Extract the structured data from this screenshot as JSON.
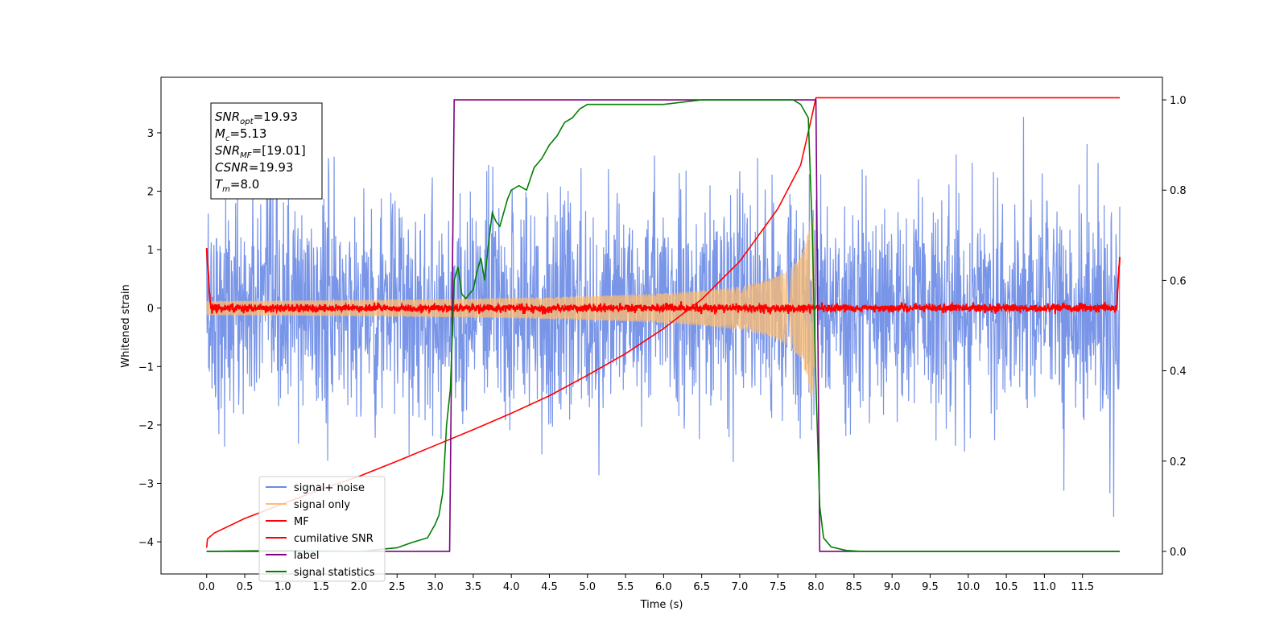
{
  "chart_data": {
    "type": "line",
    "xlabel": "Time (s)",
    "ylabel": "Whitened strain",
    "xlim": [
      -0.6,
      12.55
    ],
    "ylim": [
      -4.55,
      3.95
    ],
    "y2lim": [
      -0.05,
      1.05
    ],
    "xticks": [
      0.0,
      0.5,
      1.0,
      1.5,
      2.0,
      2.5,
      3.0,
      3.5,
      4.0,
      4.5,
      5.0,
      5.5,
      6.0,
      6.5,
      7.0,
      7.5,
      8.0,
      8.5,
      9.0,
      9.5,
      10.0,
      10.5,
      11.0,
      11.5
    ],
    "xtick_labels": [
      "0.0",
      "0.5",
      "1.0",
      "1.5",
      "2.0",
      "2.5",
      "3.0",
      "3.5",
      "4.0",
      "4.5",
      "5.0",
      "5.5",
      "6.0",
      "6.5",
      "7.0",
      "7.5",
      "8.0",
      "8.5",
      "9.0",
      "9.5",
      "10.0",
      "10.5",
      "11.0",
      "11.5"
    ],
    "yticks": [
      -4,
      -3,
      -2,
      -1,
      0,
      1,
      2,
      3
    ],
    "ytick_labels": [
      "−4",
      "−3",
      "−2",
      "−1",
      "0",
      "1",
      "2",
      "3"
    ],
    "y2ticks": [
      0.0,
      0.2,
      0.4,
      0.6,
      0.8,
      1.0
    ],
    "y2tick_labels": [
      "0.0",
      "0.2",
      "0.4",
      "0.6",
      "0.8",
      "1.0"
    ],
    "grid": false,
    "legend_placement": "lower-left",
    "series": [
      {
        "name": "signal+ noise",
        "color": "#6a8ae6",
        "axis": "left",
        "kind": "noise",
        "x_range": [
          0.0,
          11.99
        ],
        "noise_std": 0.95
      },
      {
        "name": "signal only",
        "color": "#ffbe70",
        "axis": "left",
        "kind": "chirp",
        "x_range": [
          0.0,
          8.0
        ],
        "amplitude_start": 0.12,
        "amplitude_end": 1.5
      },
      {
        "name": "MF",
        "color": "#ff0000",
        "axis": "left",
        "kind": "noise",
        "x_range": [
          0.0,
          11.99
        ],
        "noise_std": 0.035
      },
      {
        "name": "cumilative SNR",
        "color": "#ff0000",
        "axis": "left",
        "x": [
          0.0,
          0.01,
          0.1,
          0.5,
          1.0,
          1.5,
          2.0,
          2.5,
          3.0,
          3.5,
          4.0,
          4.5,
          5.0,
          5.5,
          6.0,
          6.5,
          7.0,
          7.5,
          7.8,
          7.95,
          8.0,
          11.99
        ],
        "y": [
          -4.1,
          -3.95,
          -3.85,
          -3.6,
          -3.35,
          -3.1,
          -2.88,
          -2.62,
          -2.35,
          -2.08,
          -1.8,
          -1.5,
          -1.15,
          -0.78,
          -0.35,
          0.15,
          0.8,
          1.7,
          2.45,
          3.3,
          3.6,
          3.6
        ]
      },
      {
        "name": "label",
        "color": "#800080",
        "axis": "right",
        "x": [
          0.0,
          3.19,
          3.25,
          8.0,
          8.05,
          11.99
        ],
        "y": [
          0.0,
          0.0,
          1.0,
          1.0,
          0.0,
          0.0
        ]
      },
      {
        "name": "signal statistics",
        "color": "#008000",
        "axis": "right",
        "x": [
          0.0,
          1.0,
          2.0,
          2.5,
          2.7,
          2.9,
          3.0,
          3.05,
          3.1,
          3.15,
          3.2,
          3.25,
          3.3,
          3.35,
          3.4,
          3.5,
          3.55,
          3.6,
          3.65,
          3.7,
          3.75,
          3.8,
          3.85,
          3.9,
          3.95,
          4.0,
          4.1,
          4.2,
          4.3,
          4.4,
          4.5,
          4.6,
          4.7,
          4.8,
          4.9,
          5.0,
          5.1,
          5.3,
          5.5,
          6.0,
          6.5,
          7.0,
          7.5,
          7.7,
          7.8,
          7.9,
          7.95,
          8.0,
          8.05,
          8.1,
          8.2,
          8.4,
          8.6,
          11.99
        ],
        "y": [
          0.0,
          0.002,
          0.0,
          0.008,
          0.02,
          0.03,
          0.06,
          0.08,
          0.13,
          0.28,
          0.36,
          0.6,
          0.63,
          0.57,
          0.56,
          0.58,
          0.62,
          0.65,
          0.6,
          0.68,
          0.75,
          0.73,
          0.72,
          0.75,
          0.78,
          0.8,
          0.81,
          0.8,
          0.85,
          0.87,
          0.9,
          0.92,
          0.95,
          0.96,
          0.98,
          0.99,
          0.99,
          0.99,
          0.99,
          0.99,
          1.0,
          1.0,
          1.0,
          1.0,
          0.99,
          0.96,
          0.72,
          0.37,
          0.1,
          0.03,
          0.01,
          0.002,
          0.0,
          0.0
        ]
      }
    ],
    "info_box": [
      {
        "base": "SNR",
        "sub": "opt",
        "rest": "=19.93"
      },
      {
        "base": "M",
        "sub": "c",
        "rest": "=5.13"
      },
      {
        "base": "SNR",
        "sub": "MF",
        "rest": "=[19.01]"
      },
      {
        "base": "CSNR",
        "sub": "",
        "rest": "=19.93"
      },
      {
        "base": "T",
        "sub": "m",
        "rest": "=8.0"
      }
    ]
  }
}
